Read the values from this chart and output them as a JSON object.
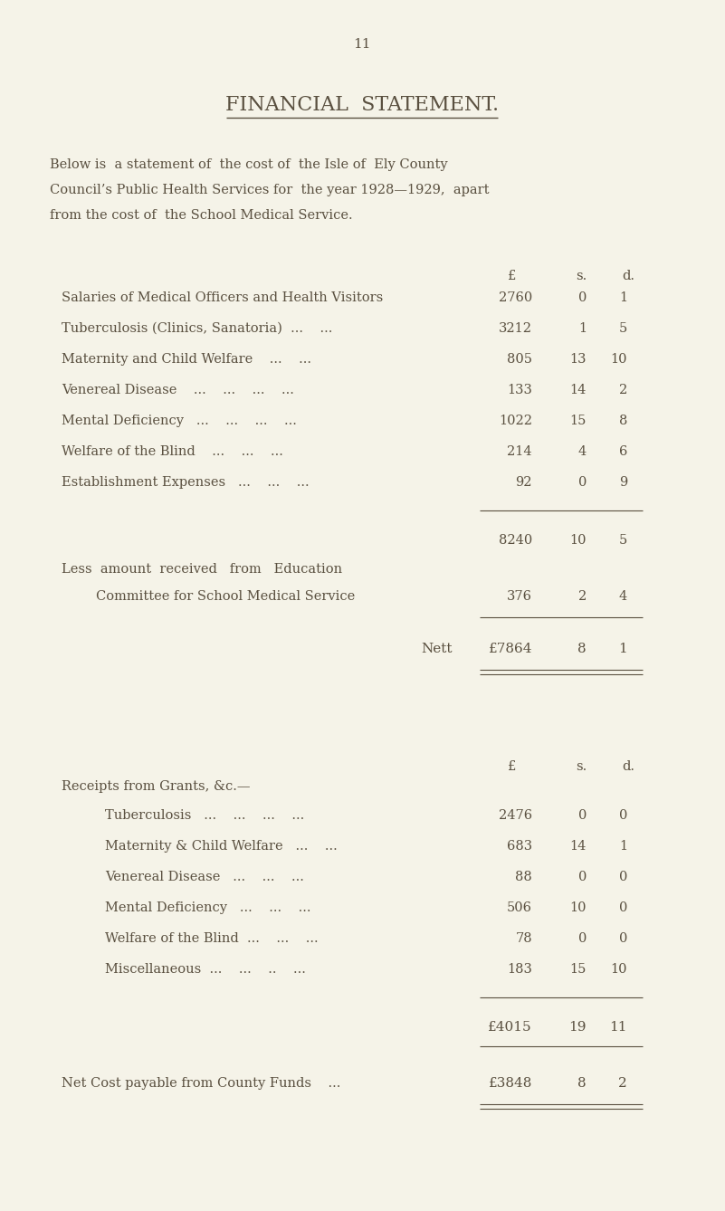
{
  "bg_color": "#f5f3e8",
  "text_color": "#5a5040",
  "page_number": "11",
  "title": "FINANCIAL  STATEMENT.",
  "intro_lines": [
    "Below is  a statement of  the cost of  the Isle of  Ely County",
    "Council’s Public Health Services for  the year 1928—1929,  apart",
    "from the cost of  the School Medical Service."
  ],
  "expense_items": [
    {
      "label": "Salaries of Medical Officers and Health Visitors",
      "pounds": "2760",
      "shillings": "0",
      "pence": "1"
    },
    {
      "label": "Tuberculosis (Clinics, Sanatoria)  ...    ...",
      "pounds": "3212",
      "shillings": "1",
      "pence": "5"
    },
    {
      "label": "Maternity and Child Welfare    ...    ...",
      "pounds": "805",
      "shillings": "13",
      "pence": "10"
    },
    {
      "label": "Venereal Disease    ...    ...    ...    ...",
      "pounds": "133",
      "shillings": "14",
      "pence": "2"
    },
    {
      "label": "Mental Deficiency   ...    ...    ...    ...",
      "pounds": "1022",
      "shillings": "15",
      "pence": "8"
    },
    {
      "label": "Welfare of the Blind    ...    ...    ...",
      "pounds": "214",
      "shillings": "4",
      "pence": "6"
    },
    {
      "label": "Establishment Expenses   ...    ...    ...",
      "pounds": "92",
      "shillings": "0",
      "pence": "9"
    }
  ],
  "subtotal": {
    "pounds": "8240",
    "shillings": "10",
    "pence": "5"
  },
  "less_label1": "Less  amount  received   from   Education",
  "less_label2": "Committee for School Medical Service",
  "less_amount": {
    "pounds": "376",
    "shillings": "2",
    "pence": "4"
  },
  "nett_label": "Nett",
  "nett_amount": {
    "pounds": "£7864",
    "shillings": "8",
    "pence": "1"
  },
  "receipts_header": "Receipts from Grants, &c.—",
  "receipt_items": [
    {
      "label": "Tuberculosis   ...    ...    ...    ...",
      "pounds": "2476",
      "shillings": "0",
      "pence": "0"
    },
    {
      "label": "Maternity & Child Welfare   ...    ...",
      "pounds": "683",
      "shillings": "14",
      "pence": "1"
    },
    {
      "label": "Venereal Disease   ...    ...    ...",
      "pounds": "88",
      "shillings": "0",
      "pence": "0"
    },
    {
      "label": "Mental Deficiency   ...    ...    ...",
      "pounds": "506",
      "shillings": "10",
      "pence": "0"
    },
    {
      "label": "Welfare of the Blind  ...    ...    ...",
      "pounds": "78",
      "shillings": "0",
      "pence": "0"
    },
    {
      "label": "Miscellaneous  ...    ...    ..    ...",
      "pounds": "183",
      "shillings": "15",
      "pence": "10"
    }
  ],
  "receipts_total": {
    "pounds": "£4015",
    "shillings": "19",
    "pence": "11"
  },
  "net_cost_label": "Net Cost payable from County Funds    ...",
  "net_cost_amount": {
    "pounds": "£3848",
    "shillings": "8",
    "pence": "2"
  }
}
